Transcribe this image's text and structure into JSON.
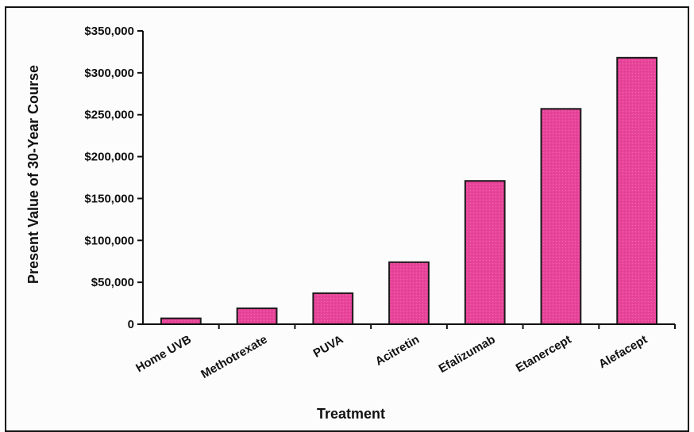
{
  "chart_data": {
    "type": "bar",
    "title": "",
    "xlabel": "Treatment",
    "ylabel": "Present Value of 30-Year Course",
    "categories": [
      "Home UVB",
      "Methotrexate",
      "PUVA",
      "Acitretin",
      "Efalizumab",
      "Etanercept",
      "Alefacept"
    ],
    "values": [
      7000,
      19000,
      37000,
      74000,
      171000,
      257000,
      318000
    ],
    "ylim": [
      0,
      350000
    ],
    "yticks": [
      0,
      50000,
      100000,
      150000,
      200000,
      250000,
      300000,
      350000
    ],
    "ytick_labels": [
      "0",
      "$50,000",
      "$100,000",
      "$150,000",
      "$200,000",
      "$250,000",
      "$300,000",
      "$350,000"
    ],
    "grid": false,
    "colors": {
      "bar_fill": "#e8459a",
      "bar_stroke": "#1a1a1a"
    }
  }
}
